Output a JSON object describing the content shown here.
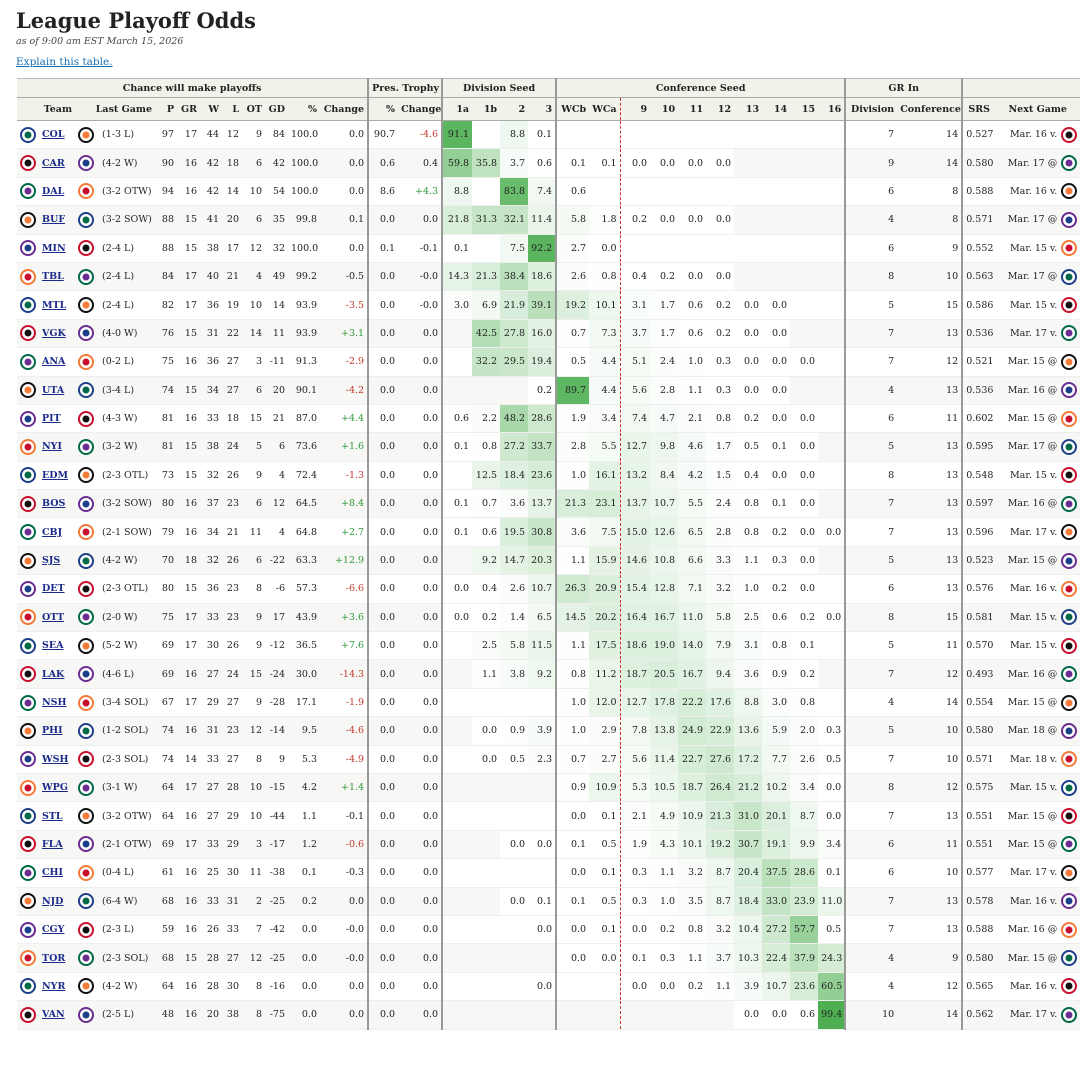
{
  "header": {
    "title": "League Playoff Odds",
    "subtitle": "as of 9:00 am EST March 15, 2026",
    "link": "Explain this table."
  },
  "table": {
    "groups": [
      "Chance will make playoffs",
      "Pres. Trophy",
      "Division Seed",
      "Conference Seed",
      "GR In"
    ],
    "columns": [
      "Team",
      "Last Game",
      "P",
      "GR",
      "W",
      "L",
      "OT",
      "GD",
      "%",
      "Change",
      "%",
      "Change",
      "1a",
      "1b",
      "2",
      "3",
      "WCb",
      "WCa",
      "9",
      "10",
      "11",
      "12",
      "13",
      "14",
      "15",
      "16",
      "Division",
      "Conference",
      "SRS",
      "Next Game"
    ],
    "rows": [
      [
        "COL",
        "(1-3 L)",
        "97",
        "17",
        "44",
        "12",
        "9",
        "84",
        "100.0",
        "0.0",
        "90.7",
        "-4.6",
        "91.1",
        null,
        "8.8",
        "0.1",
        null,
        null,
        null,
        null,
        null,
        null,
        null,
        null,
        null,
        null,
        "7",
        "14",
        "0.527",
        "Mar. 16 v."
      ],
      [
        "CAR",
        "(4-2 W)",
        "90",
        "16",
        "42",
        "18",
        "6",
        "42",
        "100.0",
        "0.0",
        "0.6",
        "0.4",
        "59.8",
        "35.8",
        "3.7",
        "0.6",
        "0.1",
        "0.1",
        "0.0",
        "0.0",
        "0.0",
        "0.0",
        null,
        null,
        null,
        null,
        "9",
        "14",
        "0.580",
        "Mar. 17 @"
      ],
      [
        "DAL",
        "(3-2 OTW)",
        "94",
        "16",
        "42",
        "14",
        "10",
        "54",
        "100.0",
        "0.0",
        "8.6",
        "+4.3",
        "8.8",
        null,
        "83.8",
        "7.4",
        "0.6",
        null,
        null,
        null,
        null,
        null,
        null,
        null,
        null,
        null,
        "6",
        "8",
        "0.588",
        "Mar. 16 v."
      ],
      [
        "BUF",
        "(3-2 SOW)",
        "88",
        "15",
        "41",
        "20",
        "6",
        "35",
        "99.8",
        "0.1",
        "0.0",
        "0.0",
        "21.8",
        "31.3",
        "32.1",
        "11.4",
        "5.8",
        "1.8",
        "0.2",
        "0.0",
        "0.0",
        "0.0",
        null,
        null,
        null,
        null,
        "4",
        "8",
        "0.571",
        "Mar. 17 @"
      ],
      [
        "MIN",
        "(2-4 L)",
        "88",
        "15",
        "38",
        "17",
        "12",
        "32",
        "100.0",
        "0.0",
        "0.1",
        "-0.1",
        "0.1",
        null,
        "7.5",
        "92.2",
        "2.7",
        "0.0",
        null,
        null,
        null,
        null,
        null,
        null,
        null,
        null,
        "6",
        "9",
        "0.552",
        "Mar. 15 v."
      ],
      [
        "TBL",
        "(2-4 L)",
        "84",
        "17",
        "40",
        "21",
        "4",
        "49",
        "99.2",
        "-0.5",
        "0.0",
        "-0.0",
        "14.3",
        "21.3",
        "38.4",
        "18.6",
        "2.6",
        "0.8",
        "0.4",
        "0.2",
        "0.0",
        "0.0",
        null,
        null,
        null,
        null,
        "8",
        "10",
        "0.563",
        "Mar. 17 @"
      ],
      [
        "MTL",
        "(2-4 L)",
        "82",
        "17",
        "36",
        "19",
        "10",
        "14",
        "93.9",
        "-3.5",
        "0.0",
        "-0.0",
        "3.0",
        "6.9",
        "21.9",
        "39.1",
        "19.2",
        "10.1",
        "3.1",
        "1.7",
        "0.6",
        "0.2",
        "0.0",
        "0.0",
        null,
        null,
        "5",
        "15",
        "0.586",
        "Mar. 15 v."
      ],
      [
        "VGK",
        "(4-0 W)",
        "76",
        "15",
        "31",
        "22",
        "14",
        "11",
        "93.9",
        "+3.1",
        "0.0",
        "0.0",
        null,
        "42.5",
        "27.8",
        "16.0",
        "0.7",
        "7.3",
        "3.7",
        "1.7",
        "0.6",
        "0.2",
        "0.0",
        "0.0",
        null,
        null,
        "7",
        "13",
        "0.536",
        "Mar. 17 v."
      ],
      [
        "ANA",
        "(0-2 L)",
        "75",
        "16",
        "36",
        "27",
        "3",
        "-11",
        "91.3",
        "-2.9",
        "0.0",
        "0.0",
        null,
        "32.2",
        "29.5",
        "19.4",
        "0.5",
        "4.4",
        "5.1",
        "2.4",
        "1.0",
        "0.3",
        "0.0",
        "0.0",
        "0.0",
        null,
        "7",
        "12",
        "0.521",
        "Mar. 15 @"
      ],
      [
        "UTA",
        "(3-4 L)",
        "74",
        "15",
        "34",
        "27",
        "6",
        "20",
        "90.1",
        "-4.2",
        "0.0",
        "0.0",
        null,
        null,
        null,
        "0.2",
        "89.7",
        "4.4",
        "5.6",
        "2.8",
        "1.1",
        "0.3",
        "0.0",
        "0.0",
        null,
        null,
        "4",
        "13",
        "0.536",
        "Mar. 16 @"
      ],
      [
        "PIT",
        "(4-3 W)",
        "81",
        "16",
        "33",
        "18",
        "15",
        "21",
        "87.0",
        "+4.4",
        "0.0",
        "0.0",
        "0.6",
        "2.2",
        "48.2",
        "28.6",
        "1.9",
        "3.4",
        "7.4",
        "4.7",
        "2.1",
        "0.8",
        "0.2",
        "0.0",
        "0.0",
        null,
        "6",
        "11",
        "0.602",
        "Mar. 15 @"
      ],
      [
        "NYI",
        "(3-2 W)",
        "81",
        "15",
        "38",
        "24",
        "5",
        "6",
        "73.6",
        "+1.6",
        "0.0",
        "0.0",
        "0.1",
        "0.8",
        "27.2",
        "33.7",
        "2.8",
        "5.5",
        "12.7",
        "9.8",
        "4.6",
        "1.7",
        "0.5",
        "0.1",
        "0.0",
        null,
        "5",
        "13",
        "0.595",
        "Mar. 17 @"
      ],
      [
        "EDM",
        "(2-3 OTL)",
        "73",
        "15",
        "32",
        "26",
        "9",
        "4",
        "72.4",
        "-1.3",
        "0.0",
        "0.0",
        null,
        "12.5",
        "18.4",
        "23.6",
        "1.0",
        "16.1",
        "13.2",
        "8.4",
        "4.2",
        "1.5",
        "0.4",
        "0.0",
        "0.0",
        null,
        "8",
        "13",
        "0.548",
        "Mar. 15 v."
      ],
      [
        "BOS",
        "(3-2 SOW)",
        "80",
        "16",
        "37",
        "23",
        "6",
        "12",
        "64.5",
        "+8.4",
        "0.0",
        "0.0",
        "0.1",
        "0.7",
        "3.6",
        "13.7",
        "21.3",
        "23.1",
        "13.7",
        "10.7",
        "5.5",
        "2.4",
        "0.8",
        "0.1",
        "0.0",
        null,
        "7",
        "13",
        "0.597",
        "Mar. 16 @"
      ],
      [
        "CBJ",
        "(2-1 SOW)",
        "79",
        "16",
        "34",
        "21",
        "11",
        "4",
        "64.8",
        "+2.7",
        "0.0",
        "0.0",
        "0.1",
        "0.6",
        "19.5",
        "30.8",
        "3.6",
        "7.5",
        "15.0",
        "12.6",
        "6.5",
        "2.8",
        "0.8",
        "0.2",
        "0.0",
        "0.0",
        "7",
        "13",
        "0.596",
        "Mar. 17 v."
      ],
      [
        "SJS",
        "(4-2 W)",
        "70",
        "18",
        "32",
        "26",
        "6",
        "-22",
        "63.3",
        "+12.9",
        "0.0",
        "0.0",
        null,
        "9.2",
        "14.7",
        "20.3",
        "1.1",
        "15.9",
        "14.6",
        "10.8",
        "6.6",
        "3.3",
        "1.1",
        "0.3",
        "0.0",
        null,
        "5",
        "13",
        "0.523",
        "Mar. 15 @"
      ],
      [
        "DET",
        "(2-3 OTL)",
        "80",
        "15",
        "36",
        "23",
        "8",
        "-6",
        "57.3",
        "-6.6",
        "0.0",
        "0.0",
        "0.0",
        "0.4",
        "2.6",
        "10.7",
        "26.3",
        "20.9",
        "15.4",
        "12.8",
        "7.1",
        "3.2",
        "1.0",
        "0.2",
        "0.0",
        null,
        "6",
        "13",
        "0.576",
        "Mar. 16 v."
      ],
      [
        "OTT",
        "(2-0 W)",
        "75",
        "17",
        "33",
        "23",
        "9",
        "17",
        "43.9",
        "+3.6",
        "0.0",
        "0.0",
        "0.0",
        "0.2",
        "1.4",
        "6.5",
        "14.5",
        "20.2",
        "16.4",
        "16.7",
        "11.0",
        "5.8",
        "2.5",
        "0.6",
        "0.2",
        "0.0",
        "8",
        "15",
        "0.581",
        "Mar. 15 v."
      ],
      [
        "SEA",
        "(5-2 W)",
        "69",
        "17",
        "30",
        "26",
        "9",
        "-12",
        "36.5",
        "+7.6",
        "0.0",
        "0.0",
        null,
        "2.5",
        "5.8",
        "11.5",
        "1.1",
        "17.5",
        "18.6",
        "19.0",
        "14.0",
        "7.9",
        "3.1",
        "0.8",
        "0.1",
        null,
        "5",
        "11",
        "0.570",
        "Mar. 15 v."
      ],
      [
        "LAK",
        "(4-6 L)",
        "69",
        "16",
        "27",
        "24",
        "15",
        "-24",
        "30.0",
        "-14.3",
        "0.0",
        "0.0",
        null,
        "1.1",
        "3.8",
        "9.2",
        "0.8",
        "11.2",
        "18.7",
        "20.5",
        "16.7",
        "9.4",
        "3.6",
        "0.9",
        "0.2",
        null,
        "7",
        "12",
        "0.493",
        "Mar. 16 @"
      ],
      [
        "NSH",
        "(3-4 SOL)",
        "67",
        "17",
        "29",
        "27",
        "9",
        "-28",
        "17.1",
        "-1.9",
        "0.0",
        "0.0",
        null,
        null,
        null,
        null,
        "1.0",
        "12.0",
        "12.7",
        "17.8",
        "22.2",
        "17.6",
        "8.8",
        "3.0",
        "0.8",
        null,
        "4",
        "14",
        "0.554",
        "Mar. 15 @"
      ],
      [
        "PHI",
        "(1-2 SOL)",
        "74",
        "16",
        "31",
        "23",
        "12",
        "-14",
        "9.5",
        "-4.6",
        "0.0",
        "0.0",
        null,
        "0.0",
        "0.9",
        "3.9",
        "1.0",
        "2.9",
        "7.8",
        "13.8",
        "24.9",
        "22.9",
        "13.6",
        "5.9",
        "2.0",
        "0.3",
        "5",
        "10",
        "0.580",
        "Mar. 18 @"
      ],
      [
        "WSH",
        "(2-3 SOL)",
        "74",
        "14",
        "33",
        "27",
        "8",
        "9",
        "5.3",
        "-4.9",
        "0.0",
        "0.0",
        null,
        "0.0",
        "0.5",
        "2.3",
        "0.7",
        "2.7",
        "5.6",
        "11.4",
        "22.7",
        "27.6",
        "17.2",
        "7.7",
        "2.6",
        "0.5",
        "7",
        "10",
        "0.571",
        "Mar. 18 v."
      ],
      [
        "WPG",
        "(3-1 W)",
        "64",
        "17",
        "27",
        "28",
        "10",
        "-15",
        "4.2",
        "+1.4",
        "0.0",
        "0.0",
        null,
        null,
        null,
        null,
        "0.9",
        "10.9",
        "5.3",
        "10.5",
        "18.7",
        "26.4",
        "21.2",
        "10.2",
        "3.4",
        "0.0",
        "8",
        "12",
        "0.575",
        "Mar. 15 v."
      ],
      [
        "STL",
        "(3-2 OTW)",
        "64",
        "16",
        "27",
        "29",
        "10",
        "-44",
        "1.1",
        "-0.1",
        "0.0",
        "0.0",
        null,
        null,
        null,
        null,
        "0.0",
        "0.1",
        "2.1",
        "4.9",
        "10.9",
        "21.3",
        "31.0",
        "20.1",
        "8.7",
        "0.0",
        "7",
        "13",
        "0.551",
        "Mar. 15 @"
      ],
      [
        "FLA",
        "(2-1 OTW)",
        "69",
        "17",
        "33",
        "29",
        "3",
        "-17",
        "1.2",
        "-0.6",
        "0.0",
        "0.0",
        null,
        null,
        "0.0",
        "0.0",
        "0.1",
        "0.5",
        "1.9",
        "4.3",
        "10.1",
        "19.2",
        "30.7",
        "19.1",
        "9.9",
        "3.4",
        "6",
        "11",
        "0.551",
        "Mar. 15 @"
      ],
      [
        "CHI",
        "(0-4 L)",
        "61",
        "16",
        "25",
        "30",
        "11",
        "-38",
        "0.1",
        "-0.3",
        "0.0",
        "0.0",
        null,
        null,
        null,
        null,
        "0.0",
        "0.1",
        "0.3",
        "1.1",
        "3.2",
        "8.7",
        "20.4",
        "37.5",
        "28.6",
        "0.1",
        "6",
        "10",
        "0.577",
        "Mar. 17 v."
      ],
      [
        "NJD",
        "(6-4 W)",
        "68",
        "16",
        "33",
        "31",
        "2",
        "-25",
        "0.2",
        "0.0",
        "0.0",
        "0.0",
        null,
        null,
        "0.0",
        "0.1",
        "0.1",
        "0.5",
        "0.3",
        "1.0",
        "3.5",
        "8.7",
        "18.4",
        "33.0",
        "23.9",
        "11.0",
        "7",
        "13",
        "0.578",
        "Mar. 16 v."
      ],
      [
        "CGY",
        "(2-3 L)",
        "59",
        "16",
        "26",
        "33",
        "7",
        "-42",
        "0.0",
        "-0.0",
        "0.0",
        "0.0",
        null,
        null,
        null,
        "0.0",
        "0.0",
        "0.1",
        "0.0",
        "0.2",
        "0.8",
        "3.2",
        "10.4",
        "27.2",
        "57.7",
        "0.5",
        "7",
        "13",
        "0.588",
        "Mar. 16 @"
      ],
      [
        "TOR",
        "(2-3 SOL)",
        "68",
        "15",
        "28",
        "27",
        "12",
        "-25",
        "0.0",
        "-0.0",
        "0.0",
        "0.0",
        null,
        null,
        null,
        null,
        "0.0",
        "0.0",
        "0.1",
        "0.3",
        "1.1",
        "3.7",
        "10.3",
        "22.4",
        "37.9",
        "24.3",
        "4",
        "9",
        "0.580",
        "Mar. 15 @"
      ],
      [
        "NYR",
        "(4-2 W)",
        "64",
        "16",
        "28",
        "30",
        "8",
        "-16",
        "0.0",
        "0.0",
        "0.0",
        "0.0",
        null,
        null,
        null,
        "0.0",
        null,
        null,
        "0.0",
        "0.0",
        "0.2",
        "1.1",
        "3.9",
        "10.7",
        "23.6",
        "60.5",
        "4",
        "12",
        "0.565",
        "Mar. 16 v."
      ],
      [
        "VAN",
        "(2-5 L)",
        "48",
        "16",
        "20",
        "38",
        "8",
        "-75",
        "0.0",
        "0.0",
        "0.0",
        "0.0",
        null,
        null,
        null,
        null,
        null,
        null,
        null,
        null,
        null,
        null,
        "0.0",
        "0.0",
        "0.6",
        "99.4",
        "10",
        "14",
        "0.562",
        "Mar. 17 v."
      ]
    ]
  }
}
